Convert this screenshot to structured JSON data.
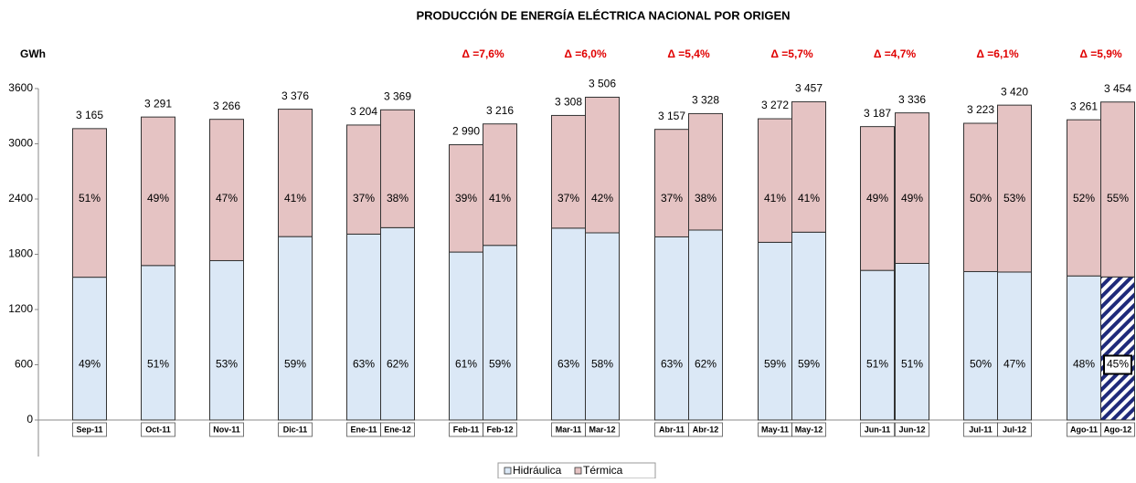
{
  "chart_data": {
    "type": "stacked_bar",
    "title": "PRODUCCIÓN DE ENERGÍA ELÉCTRICA NACIONAL POR ORIGEN",
    "y_label": "GWh",
    "categories": [
      "Sep-11",
      "Oct-11",
      "Nov-11",
      "Dic-11",
      "Ene-11",
      "Ene-12",
      "Feb-11",
      "Feb-12",
      "Mar-11",
      "Mar-12",
      "Abr-11",
      "Abr-12",
      "May-11",
      "May-12",
      "Jun-11",
      "Jun-12",
      "Jul-11",
      "Jul-12",
      "Ago-11",
      "Ago-12"
    ],
    "series": [
      {
        "name": "Hidráulica",
        "color": "#dbe8f6",
        "values": [
          1551,
          1678,
          1731,
          1992,
          2019,
          2089,
          1824,
          1897,
          2084,
          2033,
          1989,
          2063,
          1930,
          2040,
          1625,
          1701,
          1612,
          1607,
          1565,
          1554
        ],
        "share_labels": [
          "49%",
          "51%",
          "53%",
          "59%",
          "63%",
          "62%",
          "61%",
          "59%",
          "63%",
          "58%",
          "63%",
          "62%",
          "59%",
          "59%",
          "51%",
          "51%",
          "50%",
          "47%",
          "48%",
          "45%"
        ]
      },
      {
        "name": "Térmica",
        "color": "#e5c3c3",
        "values": [
          1614,
          1613,
          1535,
          1384,
          1185,
          1280,
          1166,
          1319,
          1224,
          1473,
          1168,
          1265,
          1342,
          1417,
          1562,
          1635,
          1611,
          1813,
          1696,
          1900
        ],
        "share_labels": [
          "51%",
          "49%",
          "47%",
          "41%",
          "37%",
          "38%",
          "39%",
          "41%",
          "37%",
          "42%",
          "37%",
          "38%",
          "41%",
          "41%",
          "49%",
          "49%",
          "50%",
          "53%",
          "52%",
          "55%"
        ]
      }
    ],
    "totals": [
      {
        "value": 3165,
        "label": "3 165"
      },
      {
        "value": 3291,
        "label": "3 291"
      },
      {
        "value": 3266,
        "label": "3 266"
      },
      {
        "value": 3376,
        "label": "3 376"
      },
      {
        "value": 3204,
        "label": "3 204"
      },
      {
        "value": 3369,
        "label": "3 369"
      },
      {
        "value": 2990,
        "label": "2 990"
      },
      {
        "value": 3216,
        "label": "3 216"
      },
      {
        "value": 3308,
        "label": "3 308"
      },
      {
        "value": 3506,
        "label": "3 506"
      },
      {
        "value": 3157,
        "label": "3 157"
      },
      {
        "value": 3328,
        "label": "3 328"
      },
      {
        "value": 3272,
        "label": "3 272"
      },
      {
        "value": 3457,
        "label": "3 457"
      },
      {
        "value": 3187,
        "label": "3 187"
      },
      {
        "value": 3336,
        "label": "3 336"
      },
      {
        "value": 3223,
        "label": "3 223"
      },
      {
        "value": 3420,
        "label": "3 420"
      },
      {
        "value": 3261,
        "label": "3 261"
      },
      {
        "value": 3454,
        "label": "3 454"
      }
    ],
    "deltas": [
      "Δ =7,6%",
      "Δ =6,0%",
      "Δ =5,4%",
      "Δ =5,7%",
      "Δ =4,7%",
      "Δ =6,1%",
      "Δ =5,9%"
    ],
    "ylim": [
      0,
      3600
    ],
    "yticks": [
      0,
      600,
      1200,
      1800,
      2400,
      3000,
      3600
    ]
  }
}
